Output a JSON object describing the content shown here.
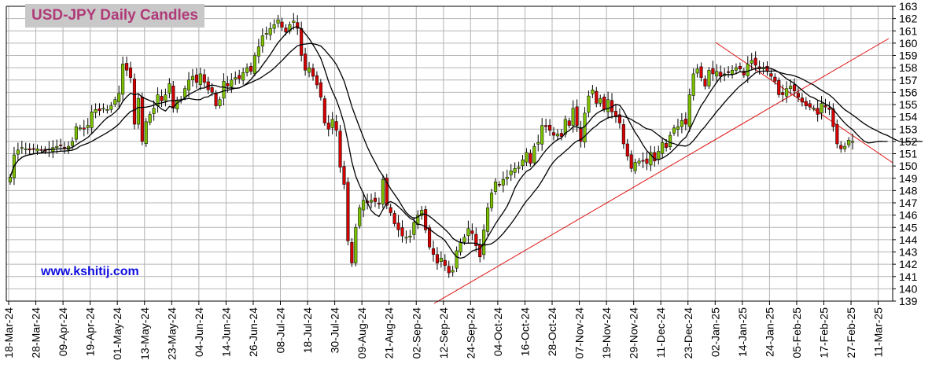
{
  "chart_data": {
    "type": "candlestick",
    "title": "USD-JPY Daily Candles",
    "watermark": "www.kshitij.com",
    "ylim": [
      139,
      163
    ],
    "y_ticks": [
      139,
      140,
      141,
      142,
      143,
      144,
      145,
      146,
      147,
      148,
      149,
      150,
      151,
      152,
      153,
      154,
      155,
      156,
      157,
      158,
      159,
      160,
      161,
      162,
      163
    ],
    "x_ticks": [
      "18-Mar-24",
      "28-Mar-24",
      "09-Apr-24",
      "19-Apr-24",
      "01-May-24",
      "13-May-24",
      "23-May-24",
      "04-Jun-24",
      "14-Jun-24",
      "26-Jun-24",
      "08-Jul-24",
      "18-Jul-24",
      "30-Jul-24",
      "09-Aug-24",
      "21-Aug-24",
      "02-Sep-24",
      "12-Sep-24",
      "24-Sep-24",
      "04-Oct-24",
      "16-Oct-24",
      "28-Oct-24",
      "07-Nov-24",
      "19-Nov-24",
      "29-Nov-24",
      "11-Dec-24",
      "23-Dec-24",
      "02-Jan-25",
      "14-Jan-25",
      "24-Jan-25",
      "05-Feb-25",
      "17-Feb-25",
      "27-Feb-25",
      "11-Mar-25"
    ],
    "grid": true,
    "colors": {
      "up": "#7cc000",
      "down": "#d40000",
      "wick": "#000000",
      "ma": "#000000",
      "trendline": "#e01010",
      "grid": "#b4b4b4",
      "title_bg": "#c8c8c8",
      "title_fg": "#b03a78",
      "url_fg": "#1010e0"
    },
    "closes": [
      149.1,
      150.9,
      151.3,
      151.5,
      151.4,
      151.3,
      151.4,
      151.4,
      151.3,
      151.2,
      151.3,
      151.5,
      151.6,
      151.7,
      151.4,
      151.6,
      152.0,
      153.2,
      153.1,
      153.0,
      153.3,
      154.4,
      154.6,
      154.5,
      154.7,
      154.6,
      154.9,
      155.4,
      155.9,
      158.3,
      157.8,
      157.2,
      153.4,
      155.5,
      152.0,
      153.6,
      154.2,
      154.7,
      155.8,
      155.3,
      155.8,
      156.7,
      154.7,
      155.3,
      155.4,
      156.3,
      157.0,
      157.3,
      156.8,
      157.5,
      156.8,
      156.2,
      156.0,
      154.9,
      155.4,
      156.9,
      156.5,
      157.0,
      157.2,
      157.1,
      157.6,
      158.0,
      157.7,
      159.0,
      159.7,
      160.6,
      160.8,
      161.2,
      161.5,
      161.9,
      161.3,
      160.9,
      161.5,
      161.8,
      161.2,
      159.0,
      157.8,
      158.0,
      157.3,
      156.6,
      155.6,
      153.5,
      153.0,
      153.8,
      152.9,
      149.9,
      148.5,
      143.9,
      142.1,
      145.0,
      146.6,
      147.2,
      147.0,
      147.2,
      147.1,
      146.9,
      148.9,
      146.8,
      146.2,
      145.3,
      144.8,
      144.3,
      144.2,
      144.3,
      145.4,
      146.0,
      146.4,
      144.8,
      143.4,
      142.8,
      142.1,
      142.5,
      141.9,
      141.3,
      141.5,
      143.1,
      143.8,
      144.2,
      144.9,
      144.5,
      143.5,
      142.6,
      144.8,
      146.6,
      147.8,
      148.7,
      148.5,
      148.9,
      149.1,
      149.6,
      149.8,
      149.9,
      150.5,
      151.1,
      150.2,
      151.6,
      151.9,
      153.3,
      153.2,
      152.9,
      152.5,
      152.6,
      152.4,
      153.8,
      153.3,
      154.7,
      153.3,
      152.0,
      154.3,
      155.7,
      156.2,
      155.1,
      155.5,
      154.6,
      155.4,
      154.4,
      154.0,
      153.5,
      151.8,
      150.8,
      149.8,
      150.3,
      150.4,
      150.4,
      150.2,
      151.1,
      150.4,
      151.2,
      151.9,
      151.5,
      152.5,
      153.1,
      153.2,
      153.7,
      153.4,
      155.8,
      157.5,
      157.9,
      157.2,
      156.5,
      157.8,
      157.5,
      157.7,
      157.3,
      157.5,
      157.6,
      157.8,
      158.0,
      157.9,
      157.4,
      158.3,
      158.6,
      158.2,
      157.9,
      158.0,
      157.7,
      157.3,
      156.9,
      155.8,
      155.8,
      156.3,
      156.5,
      156.1,
      155.6,
      155.2,
      154.9,
      154.8,
      154.7,
      154.2,
      155.1,
      154.8,
      154.6,
      153.2,
      151.8,
      151.4,
      151.6,
      152.1,
      152.0
    ]
  }
}
